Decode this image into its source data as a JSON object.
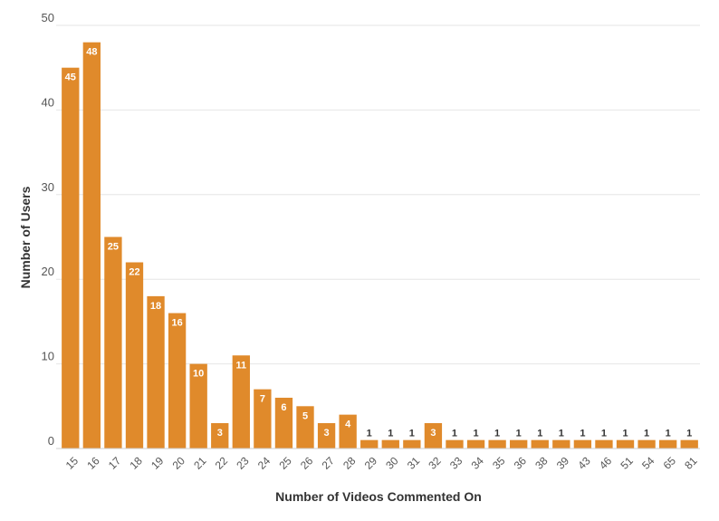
{
  "chart_data": {
    "type": "bar",
    "xlabel": "Number of Videos Commented On",
    "ylabel": "Number of Users",
    "ylim": [
      0,
      50
    ],
    "yticks": [
      0,
      10,
      20,
      30,
      40,
      50
    ],
    "grid": true,
    "legend": "none",
    "categories": [
      "15",
      "16",
      "17",
      "18",
      "19",
      "20",
      "21",
      "22",
      "23",
      "24",
      "25",
      "26",
      "27",
      "28",
      "29",
      "30",
      "31",
      "32",
      "33",
      "34",
      "35",
      "36",
      "38",
      "39",
      "43",
      "46",
      "51",
      "54",
      "65",
      "81"
    ],
    "values": [
      45,
      48,
      25,
      22,
      18,
      16,
      10,
      3,
      11,
      7,
      6,
      5,
      3,
      4,
      1,
      1,
      1,
      3,
      1,
      1,
      1,
      1,
      1,
      1,
      1,
      1,
      1,
      1,
      1,
      1
    ]
  },
  "colors": {
    "bar": "#e08a2b",
    "grid": "#e6e6e6",
    "label_inside": "#ffffff",
    "label_outside": "#333333"
  }
}
